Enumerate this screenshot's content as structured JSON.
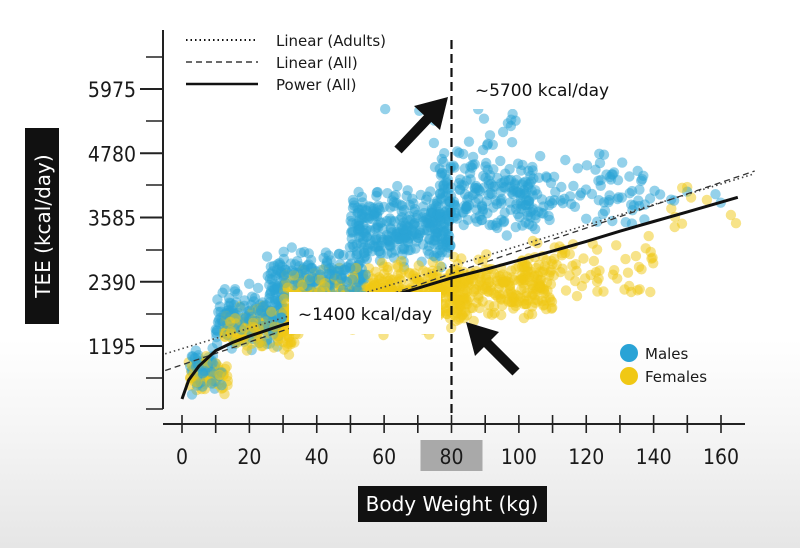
{
  "chart_data": {
    "type": "scatter",
    "xlabel": "Body Weight (kg)",
    "ylabel": "TEE (kcal/day)",
    "xlim": [
      0,
      165
    ],
    "ylim": [
      0,
      7200
    ],
    "x_ticks": [
      0,
      20,
      40,
      60,
      80,
      100,
      120,
      140,
      160
    ],
    "x_tick_labels": [
      "0",
      "20",
      "40",
      "60",
      "80",
      "100",
      "120",
      "140",
      "160"
    ],
    "y_ticks": [
      1195,
      2390,
      3585,
      4780,
      5975
    ],
    "y_tick_labels": [
      "1195",
      "2390",
      "3585",
      "4780",
      "5975"
    ],
    "highlight_x": 80,
    "highlight_label": "80",
    "legend_lines": [
      {
        "label": "Linear (Adults)",
        "style": "dotted"
      },
      {
        "label": "Linear (All)",
        "style": "dashed"
      },
      {
        "label": "Power (All)",
        "style": "solid"
      }
    ],
    "legend_points": [
      {
        "label": "Males",
        "color": "#29a3d6"
      },
      {
        "label": "Females",
        "color": "#f0c814"
      }
    ],
    "callouts": [
      {
        "text": "~5700 kcal/day",
        "x": 80,
        "y": 5700
      },
      {
        "text": "~1400 kcal/day",
        "x": 80,
        "y": 1400
      }
    ],
    "lines": {
      "linear_adults": {
        "points": [
          [
            -5,
            1050
          ],
          [
            170,
            4400
          ]
        ]
      },
      "linear_all": {
        "points": [
          [
            -5,
            740
          ],
          [
            170,
            4450
          ]
        ]
      },
      "power_all": {
        "points": [
          [
            0,
            210
          ],
          [
            2,
            560
          ],
          [
            5,
            820
          ],
          [
            10,
            1110
          ],
          [
            15,
            1260
          ],
          [
            20,
            1380
          ],
          [
            30,
            1590
          ],
          [
            40,
            1750
          ],
          [
            50,
            1920
          ],
          [
            60,
            2090
          ],
          [
            70,
            2270
          ],
          [
            80,
            2460
          ],
          [
            90,
            2620
          ],
          [
            100,
            2790
          ],
          [
            110,
            2960
          ],
          [
            120,
            3140
          ],
          [
            130,
            3330
          ],
          [
            140,
            3510
          ],
          [
            150,
            3690
          ],
          [
            160,
            3870
          ],
          [
            165,
            3960
          ]
        ]
      }
    },
    "series": [
      {
        "name": "Males",
        "color": "#29a3d6",
        "cloud": [
          {
            "x": [
              2,
              12
            ],
            "y": [
              150,
              1300
            ],
            "n": 60
          },
          {
            "x": [
              10,
              30
            ],
            "y": [
              1000,
              2500
            ],
            "n": 160
          },
          {
            "x": [
              25,
              55
            ],
            "y": [
              1700,
              3200
            ],
            "n": 230
          },
          {
            "x": [
              50,
              80
            ],
            "y": [
              2400,
              4300
            ],
            "n": 300
          },
          {
            "x": [
              75,
              105
            ],
            "y": [
              2900,
              5100
            ],
            "n": 200
          },
          {
            "x": [
              100,
              140
            ],
            "y": [
              3100,
              5000
            ],
            "n": 90
          },
          {
            "x": [
              60,
              100
            ],
            "y": [
              4200,
              6600
            ],
            "n": 24
          },
          {
            "x": [
              130,
              160
            ],
            "y": [
              3500,
              4600
            ],
            "n": 12
          }
        ]
      },
      {
        "name": "Females",
        "color": "#f0c814",
        "cloud": [
          {
            "x": [
              2,
              14
            ],
            "y": [
              150,
              1200
            ],
            "n": 60
          },
          {
            "x": [
              12,
              35
            ],
            "y": [
              900,
              2100
            ],
            "n": 140
          },
          {
            "x": [
              30,
              65
            ],
            "y": [
              1300,
              2800
            ],
            "n": 280
          },
          {
            "x": [
              55,
              85
            ],
            "y": [
              1300,
              3000
            ],
            "n": 300
          },
          {
            "x": [
              80,
              110
            ],
            "y": [
              1500,
              3000
            ],
            "n": 200
          },
          {
            "x": [
              100,
              140
            ],
            "y": [
              1900,
              3400
            ],
            "n": 80
          },
          {
            "x": [
              140,
              165
            ],
            "y": [
              3200,
              4300
            ],
            "n": 10
          }
        ]
      }
    ]
  }
}
